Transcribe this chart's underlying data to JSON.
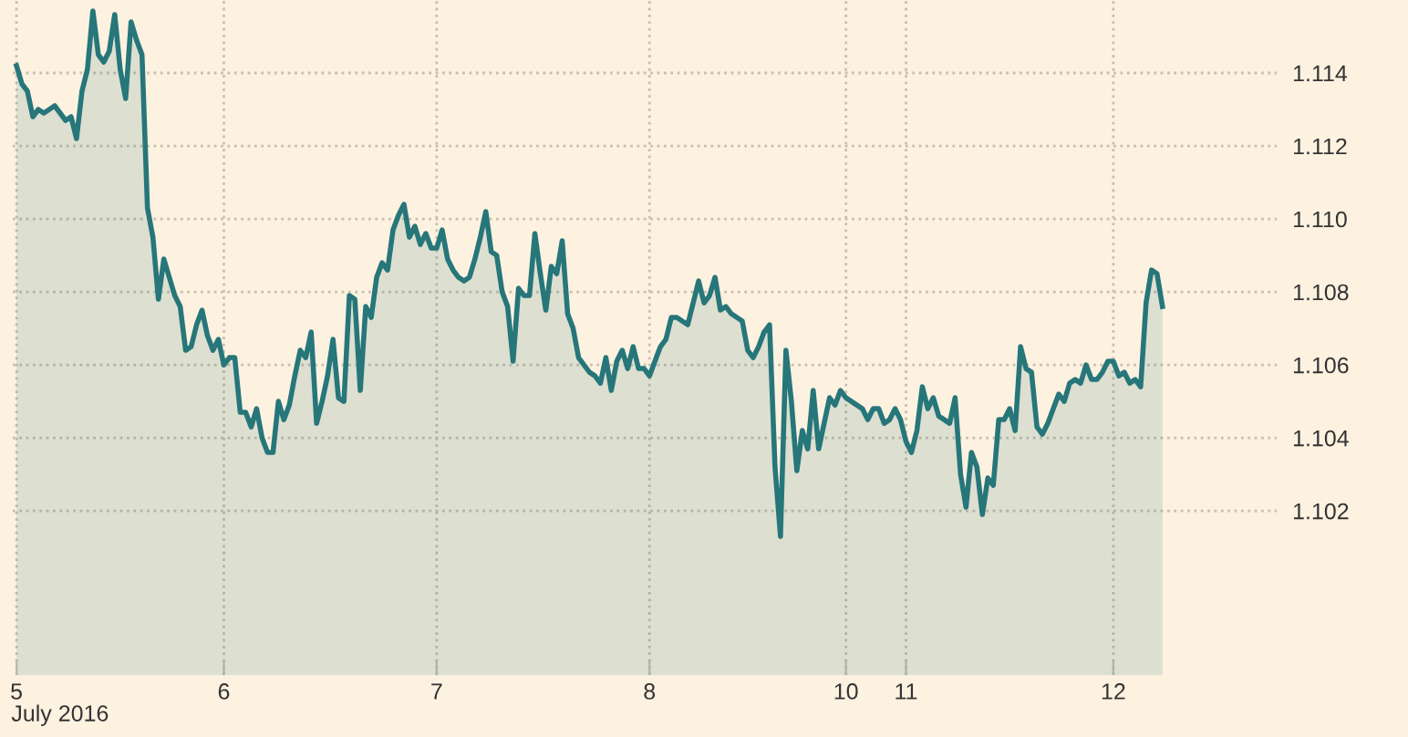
{
  "chart_data": {
    "type": "area",
    "annotations": [
      "July 2016"
    ],
    "categories": [
      "5",
      null,
      null,
      null,
      null,
      null,
      null,
      null,
      null,
      null,
      null,
      null,
      null,
      null,
      null,
      null,
      null,
      null,
      null,
      null,
      null,
      null,
      null,
      null,
      null,
      null,
      null,
      null,
      null,
      null,
      null,
      null,
      null,
      null,
      null,
      null,
      null,
      null,
      "6",
      null,
      null,
      null,
      null,
      null,
      null,
      null,
      null,
      null,
      null,
      null,
      null,
      null,
      null,
      null,
      null,
      null,
      null,
      null,
      null,
      null,
      null,
      null,
      null,
      null,
      null,
      null,
      null,
      null,
      null,
      null,
      null,
      null,
      null,
      null,
      null,
      null,
      null,
      "7",
      null,
      null,
      null,
      null,
      null,
      null,
      null,
      null,
      null,
      null,
      null,
      null,
      null,
      null,
      null,
      null,
      null,
      null,
      null,
      null,
      null,
      null,
      null,
      null,
      null,
      null,
      null,
      null,
      null,
      null,
      null,
      null,
      null,
      null,
      null,
      null,
      null,
      null,
      "8",
      null,
      null,
      null,
      null,
      null,
      null,
      null,
      null,
      null,
      null,
      null,
      null,
      null,
      null,
      null,
      null,
      null,
      null,
      null,
      null,
      null,
      null,
      null,
      null,
      null,
      null,
      null,
      null,
      null,
      null,
      null,
      null,
      null,
      null,
      null,
      "10",
      null,
      null,
      null,
      null,
      null,
      null,
      null,
      null,
      null,
      null,
      "11",
      null,
      null,
      null,
      null,
      null,
      null,
      null,
      null,
      null,
      null,
      null,
      null,
      null,
      null,
      null,
      null,
      null,
      null,
      null,
      null,
      null,
      null,
      null,
      null,
      null,
      null,
      null,
      null,
      null,
      null,
      null,
      null,
      null,
      null,
      null,
      null,
      null,
      "12",
      null,
      null,
      null,
      null,
      null,
      null,
      null,
      null,
      null
    ],
    "series": [
      {
        "color": "#26767a",
        "values": [
          1.1142,
          1.1137,
          1.1135,
          1.1128,
          1.113,
          1.1129,
          1.113,
          1.1131,
          1.1129,
          1.1127,
          1.1128,
          1.1122,
          1.1135,
          1.1141,
          1.1157,
          1.1145,
          1.1143,
          1.1146,
          1.1156,
          1.1141,
          1.1133,
          1.1154,
          1.1149,
          1.1145,
          1.1103,
          1.1095,
          1.1078,
          1.1089,
          1.1084,
          1.1079,
          1.1076,
          1.1064,
          1.1065,
          1.1071,
          1.1075,
          1.1068,
          1.1064,
          1.1067,
          1.106,
          1.1062,
          1.1062,
          1.1047,
          1.1047,
          1.1043,
          1.1048,
          1.104,
          1.1036,
          1.1036,
          1.105,
          1.1045,
          1.1049,
          1.1057,
          1.1064,
          1.1062,
          1.1069,
          1.1044,
          1.105,
          1.1057,
          1.1067,
          1.1051,
          1.105,
          1.1079,
          1.1078,
          1.1053,
          1.1076,
          1.1073,
          1.1084,
          1.1088,
          1.1086,
          1.1097,
          1.1101,
          1.1104,
          1.1095,
          1.1098,
          1.1093,
          1.1096,
          1.1092,
          1.1092,
          1.1097,
          1.1089,
          1.1086,
          1.1084,
          1.1083,
          1.1084,
          1.1089,
          1.1095,
          1.1102,
          1.1091,
          1.109,
          1.108,
          1.1076,
          1.1061,
          1.1081,
          1.1079,
          1.1079,
          1.1096,
          1.1085,
          1.1075,
          1.1087,
          1.1085,
          1.1094,
          1.1074,
          1.107,
          1.1062,
          1.106,
          1.1058,
          1.1057,
          1.1055,
          1.1062,
          1.1053,
          1.1061,
          1.1064,
          1.1059,
          1.1065,
          1.1059,
          1.1059,
          1.1057,
          1.1061,
          1.1065,
          1.1067,
          1.1073,
          1.1073,
          1.1072,
          1.1071,
          1.1077,
          1.1083,
          1.1077,
          1.1079,
          1.1084,
          1.1075,
          1.1076,
          1.1074,
          1.1073,
          1.1072,
          1.1064,
          1.1062,
          1.1065,
          1.1069,
          1.1071,
          1.1032,
          1.1013,
          1.1064,
          1.105,
          1.1031,
          1.1042,
          1.1037,
          1.1053,
          1.1037,
          1.1044,
          1.1051,
          1.1049,
          1.1053,
          1.1051,
          1.105,
          1.1049,
          1.1048,
          1.1045,
          1.1048,
          1.1048,
          1.1044,
          1.1045,
          1.1048,
          1.1045,
          1.1039,
          1.1036,
          1.1042,
          1.1054,
          1.1048,
          1.1051,
          1.1046,
          1.1045,
          1.1044,
          1.1051,
          1.103,
          1.1021,
          1.1036,
          1.1032,
          1.1019,
          1.1029,
          1.1027,
          1.1045,
          1.1045,
          1.1048,
          1.1042,
          1.1065,
          1.1059,
          1.1058,
          1.1043,
          1.1041,
          1.1044,
          1.1048,
          1.1052,
          1.105,
          1.1055,
          1.1056,
          1.1055,
          1.106,
          1.1056,
          1.1056,
          1.1058,
          1.1061,
          1.1061,
          1.1057,
          1.1058,
          1.1055,
          1.1056,
          1.1054,
          1.1077,
          1.1086,
          1.1085,
          1.1076
        ]
      }
    ],
    "ylim": [
      1.0975,
      1.116
    ],
    "yticks": [
      {
        "value": 1.102,
        "label": "1.102"
      },
      {
        "value": 1.104,
        "label": "1.104"
      },
      {
        "value": 1.106,
        "label": "1.106"
      },
      {
        "value": 1.108,
        "label": "1.108"
      },
      {
        "value": 1.11,
        "label": "1.110"
      },
      {
        "value": 1.112,
        "label": "1.112"
      },
      {
        "value": 1.114,
        "label": "1.114"
      }
    ],
    "grid": true,
    "marker": "none",
    "line_style": "solid"
  }
}
